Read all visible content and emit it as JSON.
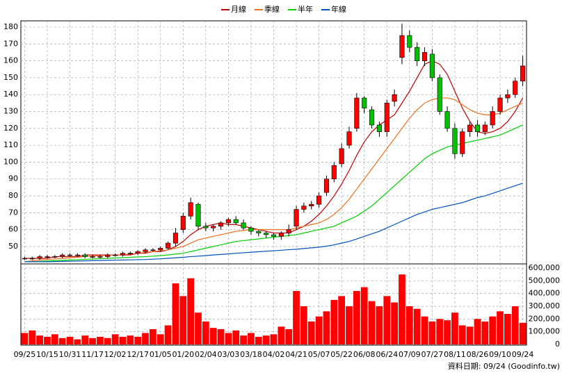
{
  "chart_data": [
    {
      "type": "candlestick",
      "ylim": [
        39.7,
        183.7
      ],
      "yticks": [
        50,
        60,
        70,
        80,
        90,
        100,
        110,
        120,
        130,
        140,
        150,
        160,
        170,
        180
      ],
      "grid": true,
      "up_color": "#ff0000",
      "down_color": "#00c000",
      "open": [
        43,
        43,
        43,
        44,
        44,
        44,
        45,
        45,
        45,
        44,
        44,
        44,
        45,
        45,
        46,
        46,
        47,
        48,
        48,
        49,
        52,
        60,
        68,
        75,
        62,
        61,
        62,
        64,
        66,
        64,
        61,
        59,
        58,
        57,
        56,
        58,
        62,
        72,
        74,
        75,
        82,
        90,
        99,
        110,
        120,
        138,
        131,
        122,
        118,
        136,
        162,
        175,
        168,
        160,
        164,
        150,
        130,
        120,
        105,
        118,
        122,
        118,
        122,
        130,
        138,
        140,
        148
      ],
      "high": [
        44,
        44,
        45,
        45,
        45,
        46,
        46,
        46,
        46,
        45,
        45,
        46,
        46,
        47,
        47,
        48,
        49,
        49,
        50,
        53,
        61,
        70,
        79,
        76,
        64,
        63,
        65,
        67,
        68,
        66,
        62,
        60,
        59,
        58,
        59,
        63,
        74,
        76,
        77,
        82,
        92,
        100,
        111,
        121,
        141,
        139,
        133,
        124,
        137,
        143,
        182,
        178,
        171,
        168,
        167,
        152,
        133,
        123,
        120,
        124,
        125,
        124,
        133,
        140,
        143,
        150,
        163
      ],
      "low": [
        42,
        42,
        42,
        43,
        43,
        43,
        44,
        44,
        43,
        43,
        43,
        43,
        44,
        44,
        45,
        45,
        46,
        47,
        47,
        48,
        50,
        58,
        66,
        60,
        59,
        59,
        60,
        62,
        63,
        60,
        57,
        56,
        55,
        54,
        54,
        56,
        60,
        70,
        72,
        73,
        80,
        88,
        97,
        108,
        118,
        129,
        120,
        115,
        115,
        133,
        158,
        165,
        157,
        157,
        148,
        128,
        118,
        102,
        103,
        115,
        115,
        116,
        120,
        128,
        135,
        138,
        145
      ],
      "close": [
        43,
        43,
        44,
        44,
        44,
        45,
        45,
        45,
        44,
        44,
        44,
        45,
        45,
        46,
        46,
        47,
        48,
        48,
        49,
        52,
        58,
        68,
        76,
        62,
        61,
        62,
        64,
        66,
        64,
        61,
        59,
        58,
        57,
        56,
        58,
        60,
        72,
        74,
        75,
        80,
        90,
        98,
        108,
        118,
        138,
        132,
        122,
        118,
        135,
        140,
        175,
        168,
        160,
        165,
        150,
        130,
        120,
        105,
        118,
        122,
        118,
        122,
        130,
        138,
        140,
        148,
        157
      ],
      "series": [
        {
          "name": "月線",
          "color": "#c00000",
          "values": [
            43,
            43,
            43,
            43,
            44,
            44,
            44,
            44,
            45,
            45,
            45,
            45,
            45,
            45,
            45,
            46,
            46,
            47,
            47,
            48,
            50,
            53,
            57,
            60,
            62,
            63,
            64,
            63,
            63,
            62,
            61,
            60,
            59,
            58,
            58,
            58,
            60,
            62,
            65,
            69,
            74,
            80,
            87,
            95,
            104,
            112,
            118,
            122,
            125,
            128,
            135,
            142,
            150,
            158,
            160,
            158,
            152,
            142,
            132,
            124,
            118,
            117,
            118,
            120,
            124,
            130,
            138
          ]
        },
        {
          "name": "季線",
          "color": "#f07020",
          "values": [
            41,
            41.5,
            42,
            42.3,
            42.6,
            43,
            43.3,
            43.6,
            44,
            44.3,
            44.5,
            44.8,
            45,
            45.2,
            45.5,
            46,
            46.5,
            47,
            47.5,
            48,
            49,
            50,
            52,
            54,
            55,
            56,
            57,
            58,
            59,
            59.5,
            60,
            60,
            60,
            60,
            60,
            60,
            61,
            62,
            63,
            64,
            66,
            69,
            73,
            78,
            84,
            90,
            96,
            102,
            108,
            114,
            120,
            126,
            131,
            135,
            137,
            138,
            138,
            137,
            134,
            131,
            129,
            128,
            128,
            129,
            131,
            133,
            135
          ]
        },
        {
          "name": "半年",
          "color": "#00d000",
          "values": [
            41,
            41,
            41.2,
            41.4,
            41.6,
            41.8,
            42,
            42.2,
            42.4,
            42.6,
            42.8,
            43,
            43.2,
            43.4,
            43.6,
            43.8,
            44,
            44.3,
            44.6,
            45,
            45.5,
            46,
            47,
            48,
            49,
            50,
            51,
            52,
            53,
            53.5,
            54,
            54.5,
            55,
            55.5,
            56,
            56.5,
            57,
            58,
            59,
            60,
            61,
            62,
            64,
            66,
            68,
            71,
            74,
            78,
            82,
            86,
            90,
            94,
            98,
            102,
            105,
            107,
            109,
            110,
            111,
            112,
            113,
            114,
            115,
            116,
            118,
            120,
            122
          ]
        },
        {
          "name": "年線",
          "color": "#0050c0",
          "values": [
            41,
            41,
            41,
            41,
            41.1,
            41.2,
            41.3,
            41.4,
            41.5,
            41.6,
            41.7,
            41.8,
            41.9,
            42,
            42.1,
            42.2,
            42.3,
            42.5,
            42.7,
            43,
            43.3,
            43.6,
            44,
            44.3,
            44.6,
            45,
            45.3,
            45.6,
            46,
            46.3,
            46.6,
            46.9,
            47.2,
            47.5,
            47.8,
            48.1,
            48.4,
            48.8,
            49.2,
            49.6,
            50.2,
            51,
            52,
            53,
            54.5,
            56,
            57.5,
            59,
            61,
            63,
            65,
            67,
            69,
            70.5,
            72,
            73,
            74,
            75,
            76,
            77.5,
            79,
            80,
            81.5,
            83,
            84.5,
            86,
            87.5
          ]
        }
      ]
    },
    {
      "type": "bar",
      "color": "#ff0000",
      "categories": [
        "09/25",
        null,
        null,
        "10/15",
        null,
        null,
        "10/31",
        null,
        null,
        "11/17",
        null,
        null,
        "12/02",
        null,
        null,
        "12/17",
        null,
        null,
        "01/05",
        null,
        null,
        "01/20",
        null,
        null,
        "02/04",
        null,
        null,
        "03/03",
        null,
        null,
        "03/18",
        null,
        null,
        "04/02",
        null,
        null,
        "04/21",
        null,
        null,
        "05/07",
        null,
        null,
        "05/22",
        null,
        null,
        "06/08",
        null,
        null,
        "06/24",
        null,
        null,
        "07/09",
        null,
        null,
        "07/27",
        null,
        null,
        "08/11",
        null,
        null,
        "08/26",
        null,
        null,
        "09/10",
        null,
        null,
        "09/24"
      ],
      "values": [
        90000,
        110000,
        70000,
        60000,
        80000,
        50000,
        60000,
        40000,
        70000,
        50000,
        60000,
        50000,
        80000,
        60000,
        70000,
        60000,
        90000,
        120000,
        80000,
        150000,
        480000,
        380000,
        520000,
        250000,
        180000,
        130000,
        120000,
        90000,
        110000,
        70000,
        90000,
        60000,
        70000,
        80000,
        140000,
        120000,
        420000,
        300000,
        180000,
        220000,
        260000,
        350000,
        380000,
        300000,
        420000,
        450000,
        340000,
        300000,
        380000,
        330000,
        550000,
        300000,
        280000,
        220000,
        180000,
        200000,
        190000,
        250000,
        150000,
        140000,
        200000,
        180000,
        220000,
        260000,
        240000,
        300000,
        170000
      ],
      "ylim": [
        0,
        633000
      ],
      "yticks": [
        0,
        {
          "value": 100000,
          "label": "100,000"
        },
        {
          "value": 200000,
          "label": "200,000"
        },
        {
          "value": 300000,
          "label": "300,000"
        },
        {
          "value": 400000,
          "label": "400,000"
        },
        {
          "value": 500000,
          "label": "500,000"
        },
        {
          "value": 600000,
          "label": "600,000"
        }
      ],
      "grid": true,
      "annotation": "資料日期: 09/24 (Goodinfo.tw)"
    }
  ]
}
